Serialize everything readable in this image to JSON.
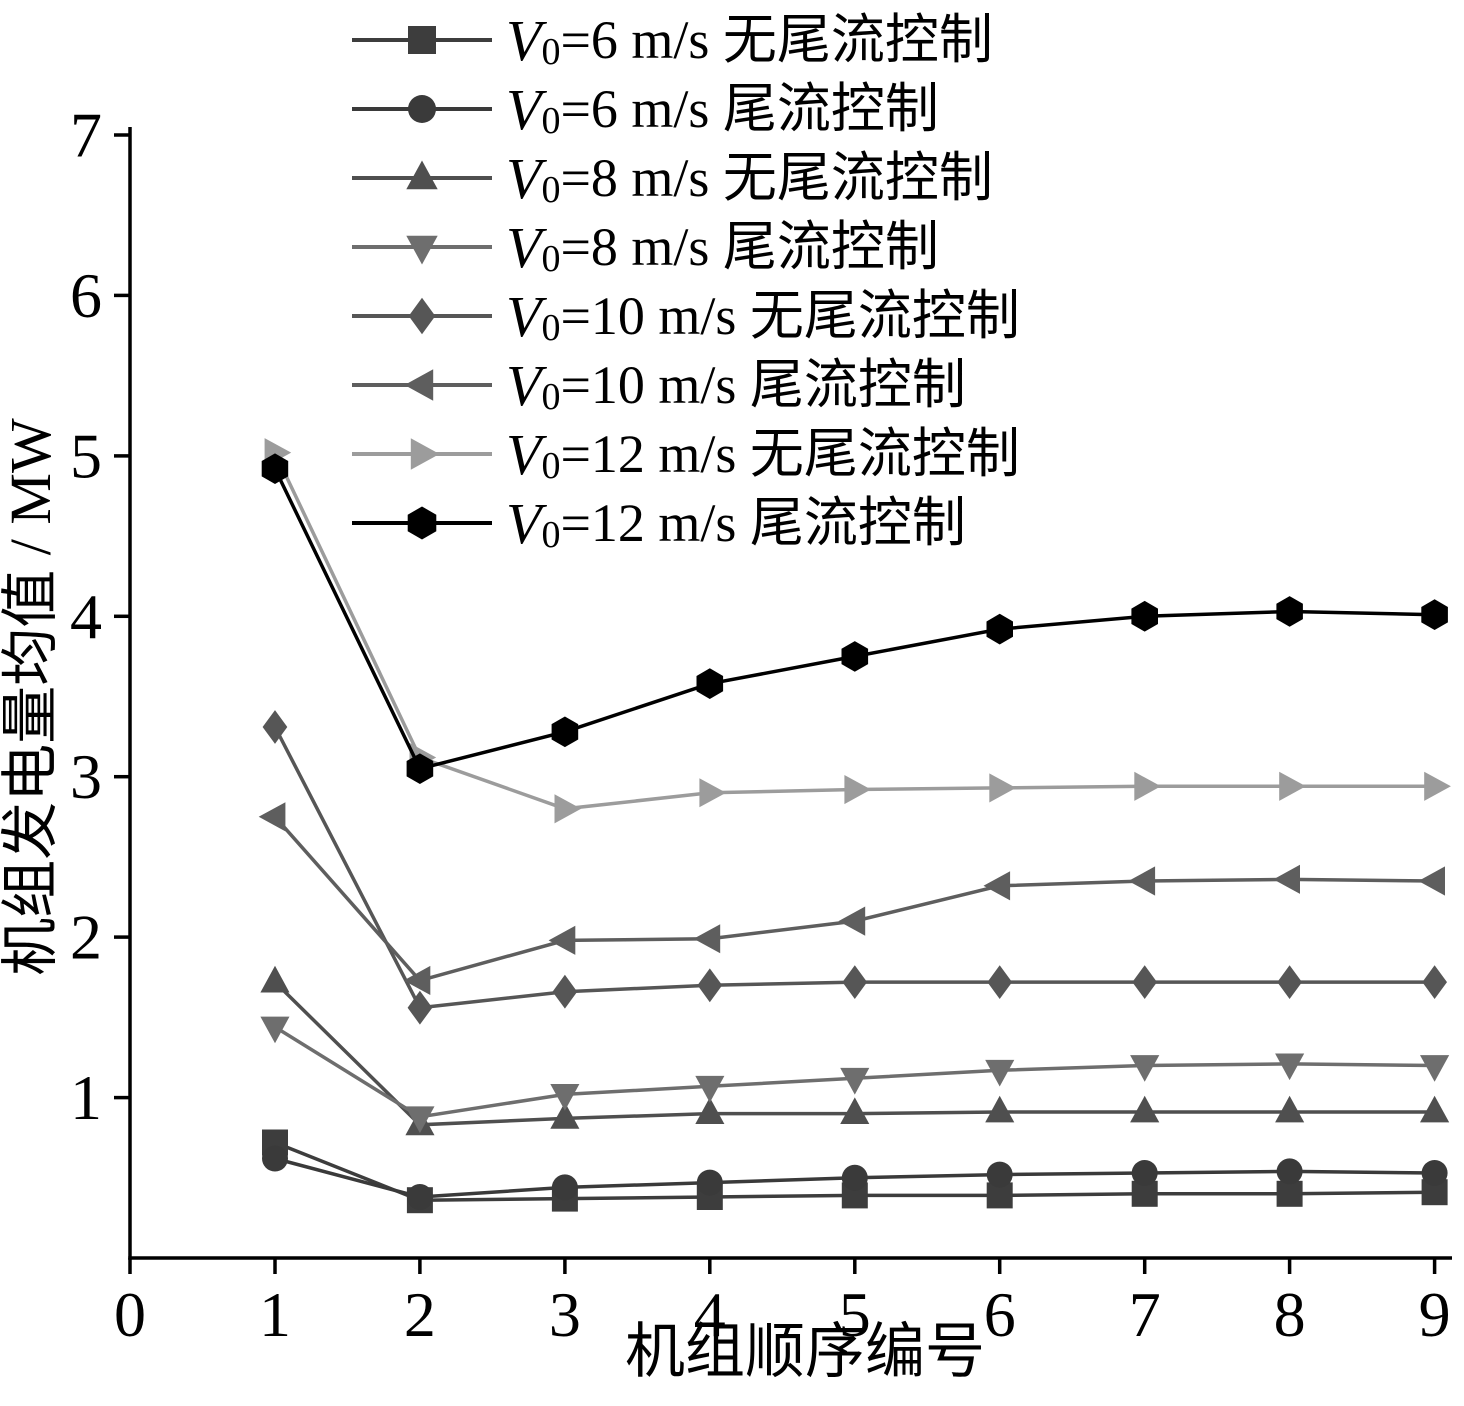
{
  "figure": {
    "background": "#ffffff",
    "axis_color": "#000000"
  },
  "chart_data": {
    "type": "line",
    "title": "",
    "xlabel": "机组顺序编号",
    "ylabel": "机组发电量均值 / MW",
    "xlim": [
      0,
      9.12
    ],
    "ylim": [
      0,
      7
    ],
    "x_ticks": [
      0,
      1,
      2,
      3,
      4,
      5,
      6,
      7,
      8,
      9
    ],
    "y_ticks": [
      1,
      2,
      3,
      4,
      5,
      6,
      7
    ],
    "grid": false,
    "legend_position": "top-inside",
    "x": [
      1,
      2,
      3,
      4,
      5,
      6,
      7,
      8,
      9
    ],
    "series": [
      {
        "label": "V0=6 m/s 无尾流控制",
        "name_var": "V",
        "name_sub": "0",
        "name_rest": "=6 m/s 无尾流控制",
        "marker": "square",
        "color": "#3d3d3d",
        "values": [
          0.72,
          0.36,
          0.37,
          0.38,
          0.39,
          0.39,
          0.4,
          0.4,
          0.41
        ]
      },
      {
        "label": "V0=6 m/s 尾流控制",
        "name_var": "V",
        "name_sub": "0",
        "name_rest": "=6 m/s 尾流控制",
        "marker": "circle",
        "color": "#3a3a3a",
        "values": [
          0.62,
          0.38,
          0.44,
          0.47,
          0.5,
          0.52,
          0.53,
          0.54,
          0.53
        ]
      },
      {
        "label": "V0=8 m/s 无尾流控制",
        "name_var": "V",
        "name_sub": "0",
        "name_rest": "=8 m/s 无尾流控制",
        "marker": "triangle-up",
        "color": "#4f4f4f",
        "values": [
          1.72,
          0.83,
          0.87,
          0.9,
          0.9,
          0.91,
          0.91,
          0.91,
          0.91
        ]
      },
      {
        "label": "V0=8 m/s 尾流控制",
        "name_var": "V",
        "name_sub": "0",
        "name_rest": "=8 m/s 尾流控制",
        "marker": "triangle-down",
        "color": "#6e6e6e",
        "values": [
          1.44,
          0.88,
          1.02,
          1.07,
          1.12,
          1.17,
          1.2,
          1.21,
          1.2
        ]
      },
      {
        "label": "V0=10 m/s 无尾流控制",
        "name_var": "V",
        "name_sub": "0",
        "name_rest": "=10 m/s 无尾流控制",
        "marker": "diamond",
        "color": "#565656",
        "values": [
          3.31,
          1.56,
          1.66,
          1.7,
          1.72,
          1.72,
          1.72,
          1.72,
          1.72
        ]
      },
      {
        "label": "V0=10 m/s 尾流控制",
        "name_var": "V",
        "name_sub": "0",
        "name_rest": "=10 m/s 尾流控制",
        "marker": "triangle-left",
        "color": "#5e5e5e",
        "values": [
          2.75,
          1.73,
          1.98,
          1.99,
          2.1,
          2.32,
          2.35,
          2.36,
          2.35
        ]
      },
      {
        "label": "V0=12 m/s 无尾流控制",
        "name_var": "V",
        "name_sub": "0",
        "name_rest": "=12 m/s 无尾流控制",
        "marker": "triangle-right",
        "color": "#9c9c9c",
        "values": [
          5.02,
          3.12,
          2.8,
          2.9,
          2.92,
          2.93,
          2.94,
          2.94,
          2.94
        ]
      },
      {
        "label": "V0=12 m/s 尾流控制",
        "name_var": "V",
        "name_sub": "0",
        "name_rest": "=12 m/s 尾流控制",
        "marker": "hexagon",
        "color": "#000000",
        "values": [
          4.92,
          3.05,
          3.28,
          3.58,
          3.75,
          3.92,
          4.0,
          4.03,
          4.01
        ]
      }
    ]
  }
}
